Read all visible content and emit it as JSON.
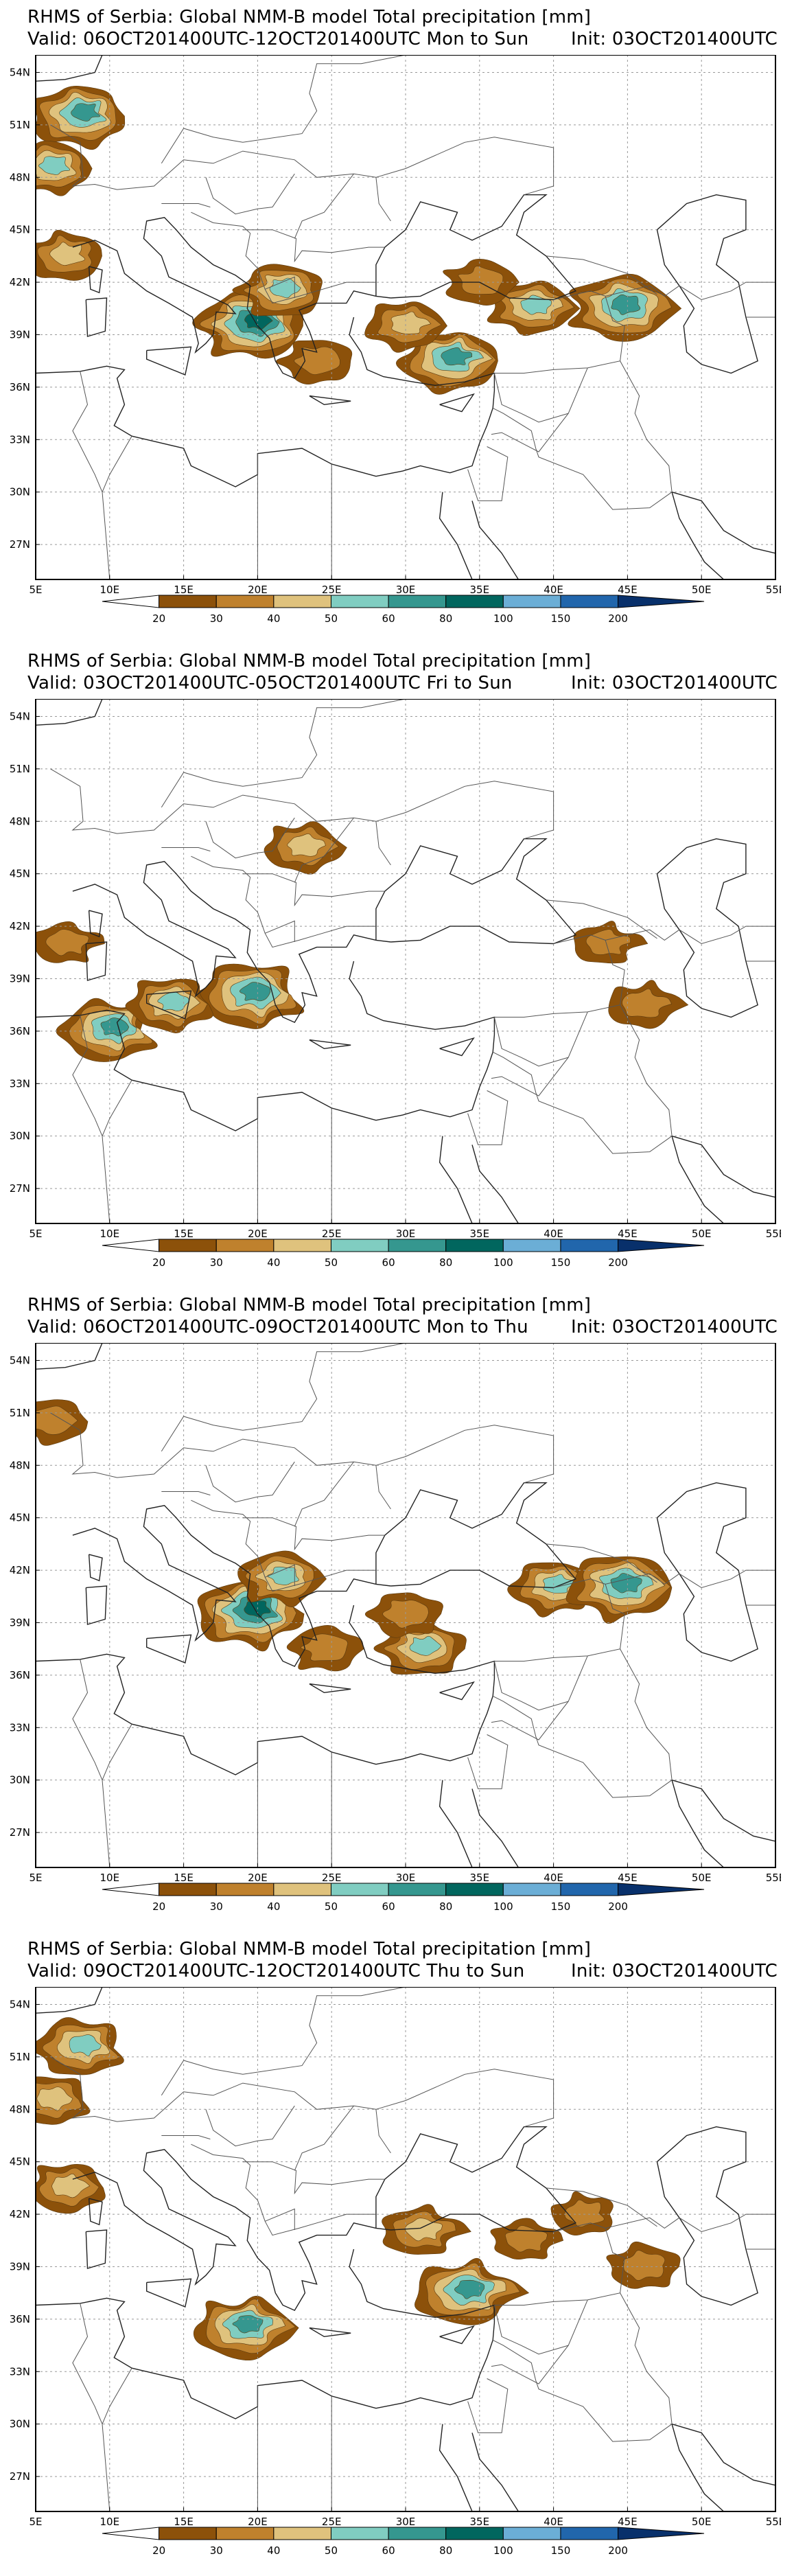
{
  "panels": [
    {
      "title": "RHMS of Serbia: Global NMM-B model Total precipitation [mm]",
      "valid": "Valid: 06OCT201400UTC-12OCT201400UTC Mon to Sun",
      "init": "Init: 03OCT201400UTC",
      "regions": [
        {
          "lon": 8,
          "lat": 51.5,
          "intensity": 0.8
        },
        {
          "lon": 6,
          "lat": 48.5,
          "intensity": 0.6
        },
        {
          "lon": 19.5,
          "lat": 39.5,
          "intensity": 0.95
        },
        {
          "lon": 21.5,
          "lat": 41.5,
          "intensity": 0.6
        },
        {
          "lon": 24,
          "lat": 37.5,
          "intensity": 0.4
        },
        {
          "lon": 33,
          "lat": 37.5,
          "intensity": 0.8
        },
        {
          "lon": 30,
          "lat": 39.5,
          "intensity": 0.5
        },
        {
          "lon": 38.5,
          "lat": 40.5,
          "intensity": 0.6
        },
        {
          "lon": 44.5,
          "lat": 40.5,
          "intensity": 0.9
        },
        {
          "lon": 35,
          "lat": 42,
          "intensity": 0.4
        },
        {
          "lon": 7,
          "lat": 43.5,
          "intensity": 0.5
        }
      ]
    },
    {
      "title": "RHMS of Serbia: Global NMM-B model Total precipitation [mm]",
      "valid": "Valid: 03OCT201400UTC-05OCT201400UTC Fri to Sun",
      "init": "Init: 03OCT201400UTC",
      "regions": [
        {
          "lon": 10,
          "lat": 36,
          "intensity": 0.8
        },
        {
          "lon": 19.5,
          "lat": 38,
          "intensity": 0.9
        },
        {
          "lon": 14,
          "lat": 37.5,
          "intensity": 0.6
        },
        {
          "lon": 23,
          "lat": 46.5,
          "intensity": 0.5
        },
        {
          "lon": 46,
          "lat": 37.5,
          "intensity": 0.4
        },
        {
          "lon": 43.5,
          "lat": 41,
          "intensity": 0.3
        },
        {
          "lon": 7,
          "lat": 41,
          "intensity": 0.3
        }
      ]
    },
    {
      "title": "RHMS of Serbia: Global NMM-B model Total precipitation [mm]",
      "valid": "Valid: 06OCT201400UTC-09OCT201400UTC Mon to Thu",
      "init": "Init: 03OCT201400UTC",
      "regions": [
        {
          "lon": 19.5,
          "lat": 39.5,
          "intensity": 0.95
        },
        {
          "lon": 21.5,
          "lat": 41.5,
          "intensity": 0.6
        },
        {
          "lon": 24.5,
          "lat": 37.5,
          "intensity": 0.4
        },
        {
          "lon": 31,
          "lat": 37.5,
          "intensity": 0.6
        },
        {
          "lon": 30,
          "lat": 39.5,
          "intensity": 0.4
        },
        {
          "lon": 40,
          "lat": 41,
          "intensity": 0.6
        },
        {
          "lon": 44.5,
          "lat": 41,
          "intensity": 0.9
        },
        {
          "lon": 6,
          "lat": 50.5,
          "intensity": 0.4
        }
      ]
    },
    {
      "title": "RHMS of Serbia: Global NMM-B model Total precipitation [mm]",
      "valid": "Valid: 09OCT201400UTC-12OCT201400UTC Thu to Sun",
      "init": "Init: 03OCT201400UTC",
      "regions": [
        {
          "lon": 8,
          "lat": 51.5,
          "intensity": 0.7
        },
        {
          "lon": 6,
          "lat": 48.5,
          "intensity": 0.5
        },
        {
          "lon": 7,
          "lat": 43.5,
          "intensity": 0.5
        },
        {
          "lon": 19,
          "lat": 35.5,
          "intensity": 0.8
        },
        {
          "lon": 34,
          "lat": 37.5,
          "intensity": 0.85
        },
        {
          "lon": 31,
          "lat": 41,
          "intensity": 0.5
        },
        {
          "lon": 38,
          "lat": 40.5,
          "intensity": 0.3
        },
        {
          "lon": 46,
          "lat": 39,
          "intensity": 0.4
        },
        {
          "lon": 42,
          "lat": 42,
          "intensity": 0.3
        }
      ]
    }
  ],
  "map": {
    "lon_range": [
      5,
      55
    ],
    "lat_range": [
      25,
      55
    ],
    "lon_labels": [
      "5E",
      "10E",
      "15E",
      "20E",
      "25E",
      "30E",
      "35E",
      "40E",
      "45E",
      "50E",
      "55E"
    ],
    "lat_labels": [
      "54N",
      "51N",
      "48N",
      "45N",
      "42N",
      "39N",
      "36N",
      "33N",
      "30N",
      "27N"
    ],
    "lon_ticks": [
      5,
      10,
      15,
      20,
      25,
      30,
      35,
      40,
      45,
      50,
      55
    ],
    "lat_ticks": [
      54,
      51,
      48,
      45,
      42,
      39,
      36,
      33,
      30,
      27
    ]
  },
  "colorbar": {
    "labels": [
      "20",
      "30",
      "40",
      "50",
      "60",
      "80",
      "100",
      "150",
      "200"
    ],
    "colors": [
      "#8c510a",
      "#bf812d",
      "#dfc27d",
      "#80cdc1",
      "#35978f",
      "#01665e",
      "#6baed6",
      "#2166ac",
      "#08306b"
    ]
  }
}
